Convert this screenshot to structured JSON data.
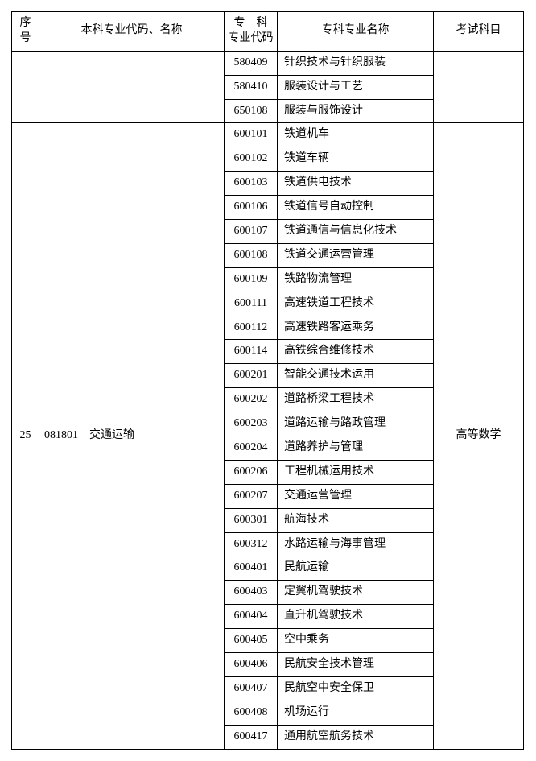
{
  "headers": {
    "seq": "序号",
    "major": "本科专业代码、名称",
    "spec_code": "专　科\n专业代码",
    "spec_name": "专科专业名称",
    "exam": "考试科目"
  },
  "group_prev": {
    "rows": [
      {
        "code": "580409",
        "name": "针织技术与针织服装"
      },
      {
        "code": "580410",
        "name": "服装设计与工艺"
      },
      {
        "code": "650108",
        "name": "服装与服饰设计"
      }
    ]
  },
  "group_main": {
    "seq": "25",
    "major_code": "081801",
    "major_name": "交通运输",
    "exam": "高等数学",
    "rows": [
      {
        "code": "600101",
        "name": "铁道机车"
      },
      {
        "code": "600102",
        "name": "铁道车辆"
      },
      {
        "code": "600103",
        "name": "铁道供电技术"
      },
      {
        "code": "600106",
        "name": "铁道信号自动控制"
      },
      {
        "code": "600107",
        "name": "铁道通信与信息化技术"
      },
      {
        "code": "600108",
        "name": "铁道交通运营管理"
      },
      {
        "code": "600109",
        "name": "铁路物流管理"
      },
      {
        "code": "600111",
        "name": "高速铁道工程技术"
      },
      {
        "code": "600112",
        "name": "高速铁路客运乘务"
      },
      {
        "code": "600114",
        "name": "高铁综合维修技术"
      },
      {
        "code": "600201",
        "name": "智能交通技术运用"
      },
      {
        "code": "600202",
        "name": "道路桥梁工程技术"
      },
      {
        "code": "600203",
        "name": "道路运输与路政管理"
      },
      {
        "code": "600204",
        "name": "道路养护与管理"
      },
      {
        "code": "600206",
        "name": "工程机械运用技术"
      },
      {
        "code": "600207",
        "name": "交通运营管理"
      },
      {
        "code": "600301",
        "name": "航海技术"
      },
      {
        "code": "600312",
        "name": "水路运输与海事管理"
      },
      {
        "code": "600401",
        "name": "民航运输"
      },
      {
        "code": "600403",
        "name": "定翼机驾驶技术"
      },
      {
        "code": "600404",
        "name": "直升机驾驶技术"
      },
      {
        "code": "600405",
        "name": "空中乘务"
      },
      {
        "code": "600406",
        "name": "民航安全技术管理"
      },
      {
        "code": "600407",
        "name": "民航空中安全保卫"
      },
      {
        "code": "600408",
        "name": "机场运行"
      },
      {
        "code": "600417",
        "name": "通用航空航务技术"
      }
    ]
  }
}
